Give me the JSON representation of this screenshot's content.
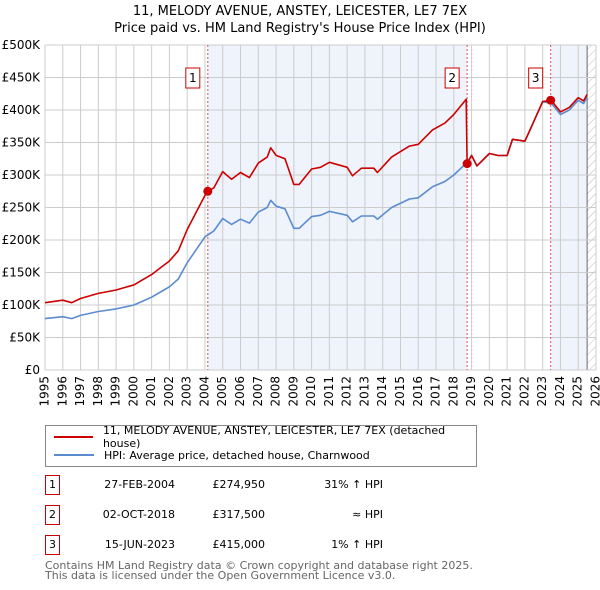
{
  "chart_data": {
    "type": "line",
    "title": "11, MELODY AVENUE, ANSTEY, LEICESTER, LE7 7EX",
    "subtitle": "Price paid vs. HM Land Registry's House Price Index (HPI)",
    "xlim": [
      1995,
      2026
    ],
    "ylim": [
      0,
      500000
    ],
    "x_ticks": [
      "1995",
      "1996",
      "1997",
      "1998",
      "1999",
      "2000",
      "2001",
      "2002",
      "2003",
      "2004",
      "2005",
      "2006",
      "2007",
      "2008",
      "2009",
      "2010",
      "2011",
      "2012",
      "2013",
      "2014",
      "2015",
      "2016",
      "2017",
      "2018",
      "2019",
      "2020",
      "2021",
      "2022",
      "2023",
      "2024",
      "2025",
      "2026"
    ],
    "y_ticks": [
      {
        "v": 0,
        "label": "£0"
      },
      {
        "v": 50000,
        "label": "£50K"
      },
      {
        "v": 100000,
        "label": "£100K"
      },
      {
        "v": 150000,
        "label": "£150K"
      },
      {
        "v": 200000,
        "label": "£200K"
      },
      {
        "v": 250000,
        "label": "£250K"
      },
      {
        "v": 300000,
        "label": "£300K"
      },
      {
        "v": 350000,
        "label": "£350K"
      },
      {
        "v": 400000,
        "label": "£400K"
      },
      {
        "v": 450000,
        "label": "£450K"
      },
      {
        "v": 500000,
        "label": "£500K"
      }
    ],
    "grid": true,
    "forecast_from": 2025.5,
    "series": [
      {
        "name": "11, MELODY AVENUE, ANSTEY, LEICESTER, LE7 7EX (detached house)",
        "color": "#cc0000",
        "x": [
          1995,
          1996,
          1996.5,
          1997,
          1998,
          1999,
          2000,
          2000.5,
          2001,
          2001.5,
          2002,
          2002.5,
          2003,
          2003.5,
          2004,
          2004.16,
          2004.5,
          2005,
          2005.5,
          2006,
          2006.5,
          2007,
          2007.5,
          2007.7,
          2008,
          2008.5,
          2009,
          2009.3,
          2010,
          2010.5,
          2011,
          2012,
          2012.3,
          2012.8,
          2013.5,
          2013.7,
          2014.5,
          2015.5,
          2016,
          2016.8,
          2017.5,
          2018,
          2018.7,
          2018.75,
          2019,
          2019.3,
          2020,
          2020.5,
          2021,
          2021.3,
          2022,
          2022.3,
          2023,
          2023.45,
          2023.5,
          2024,
          2024.5,
          2025,
          2025.3,
          2025.5
        ],
        "y": [
          103500,
          107400,
          103500,
          110000,
          117900,
          123100,
          131000,
          138900,
          146700,
          157200,
          167700,
          183400,
          216200,
          242400,
          268600,
          274950,
          280300,
          305200,
          293400,
          303900,
          296000,
          318300,
          327500,
          341900,
          330100,
          324900,
          285600,
          285600,
          309200,
          311800,
          319600,
          311800,
          298700,
          310500,
          310500,
          303900,
          327500,
          344500,
          347200,
          369400,
          379900,
          393000,
          416600,
          317500,
          330000,
          314000,
          333000,
          330000,
          330000,
          355000,
          352000,
          370000,
          413000,
          415000,
          414000,
          397000,
          404000,
          419000,
          414000,
          424000
        ]
      },
      {
        "name": "HPI: Average price, detached house, Charnwood",
        "color": "#5b8ccf",
        "x": [
          1995,
          1996,
          1996.5,
          1997,
          1998,
          1999,
          2000,
          2000.5,
          2001,
          2001.5,
          2002,
          2002.5,
          2003,
          2003.5,
          2004,
          2004.5,
          2005,
          2005.5,
          2006,
          2006.5,
          2007,
          2007.5,
          2007.7,
          2008,
          2008.5,
          2009,
          2009.3,
          2010,
          2010.5,
          2011,
          2012,
          2012.3,
          2012.8,
          2013.5,
          2013.7,
          2014.5,
          2015.5,
          2016,
          2016.8,
          2017.5,
          2018,
          2018.7,
          2019,
          2019.3,
          2020,
          2020.5,
          2021,
          2021.3,
          2022,
          2022.3,
          2023,
          2023.5,
          2024,
          2024.5,
          2025,
          2025.3,
          2025.5
        ],
        "y": [
          79000,
          82000,
          79000,
          84000,
          90000,
          94000,
          100000,
          106000,
          112000,
          120000,
          128000,
          140000,
          165000,
          185000,
          205000,
          214000,
          233000,
          224000,
          232000,
          226000,
          243000,
          250000,
          261000,
          252000,
          248000,
          218000,
          218000,
          236000,
          238000,
          244000,
          238000,
          228000,
          237000,
          237000,
          232000,
          250000,
          263000,
          265000,
          282000,
          290000,
          300000,
          318000,
          330000,
          314000,
          333000,
          330000,
          330000,
          355000,
          352000,
          370000,
          413000,
          410000,
          393000,
          400000,
          415000,
          410000,
          420000
        ]
      }
    ],
    "legend_position": "bottom",
    "sales": [
      {
        "num": "1",
        "x": 2004.16,
        "price": 274950,
        "date": "27-FEB-2004",
        "price_label": "£274,950",
        "hpi": "31% ↑ HPI"
      },
      {
        "num": "2",
        "x": 2018.75,
        "price": 317500,
        "date": "02-OCT-2018",
        "price_label": "£317,500",
        "hpi": "≈ HPI"
      },
      {
        "num": "3",
        "x": 2023.45,
        "price": 415000,
        "date": "15-JUN-2023",
        "price_label": "£415,000",
        "hpi": "1% ↑ HPI"
      }
    ]
  },
  "footer": {
    "line1": "Contains HM Land Registry data © Crown copyright and database right 2025.",
    "line2": "This data is licensed under the Open Government Licence v3.0."
  }
}
